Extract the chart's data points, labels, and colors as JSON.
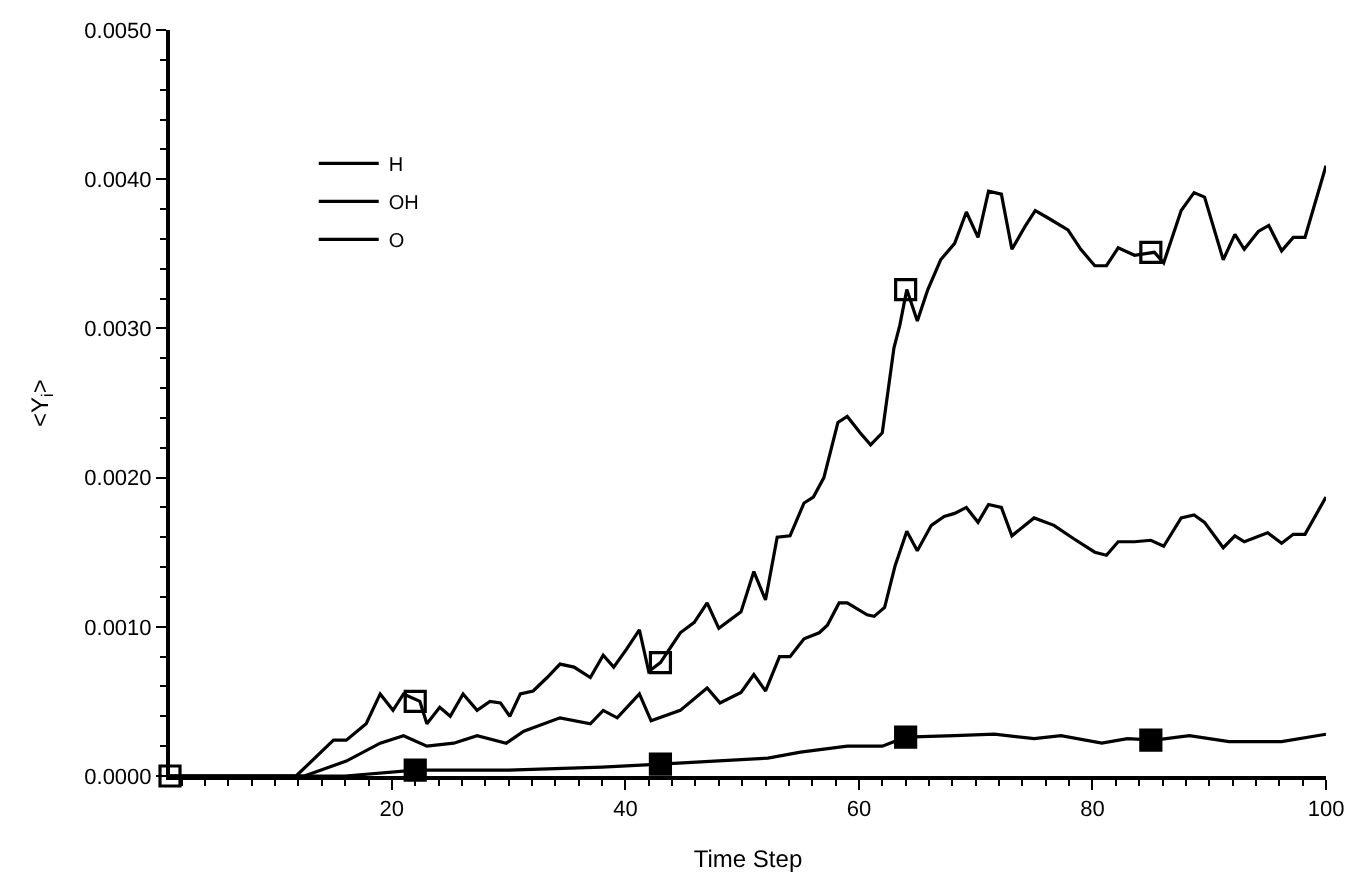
{
  "chart_data": {
    "type": "line",
    "xlabel": "Time Step",
    "ylabel": "<Y$_{i}$>",
    "xlim": [
      1,
      100
    ],
    "xticks": [
      20,
      40,
      60,
      80,
      100
    ],
    "ylim": [
      0,
      0.005
    ],
    "yticks": [
      {
        "value": 0,
        "label": "0.0000"
      },
      {
        "value": 0.001,
        "label": "0.0010"
      },
      {
        "value": 0.002,
        "label": "0.0020"
      },
      {
        "value": 0.003,
        "label": "0.0030"
      },
      {
        "value": 0.004,
        "label": "0.0040"
      },
      {
        "value": 0.005,
        "label": "0.0050"
      }
    ],
    "legend": "top left",
    "series": [
      {
        "name": "H",
        "color": "#000000",
        "x": [
          1,
          12,
          16,
          22,
          30,
          38,
          43,
          47.6,
          52.2,
          55,
          59,
          62,
          64,
          68.2,
          71.6,
          75,
          77.3,
          80.8,
          83,
          85.3,
          88.3,
          91.7,
          96.2,
          100
        ],
        "values": [
          0,
          0,
          0,
          4e-05,
          4e-05,
          6e-05,
          8e-05,
          0.0001,
          0.00012,
          0.00016,
          0.0002,
          0.0002,
          0.00026,
          0.00027,
          0.00028,
          0.00025,
          0.00027,
          0.00022,
          0.00025,
          0.00024,
          0.00027,
          0.00023,
          0.00023,
          0.00028
        ]
      },
      {
        "name": "OH",
        "color": "#000000",
        "x": [
          1,
          11.8,
          15,
          16.1,
          17.8,
          19,
          20.1,
          21,
          22.4,
          23,
          24.1,
          25,
          26.1,
          27.3,
          28.4,
          29.3,
          30.1,
          31,
          32.1,
          33.3,
          34.4,
          35.6,
          37,
          38.1,
          39,
          40.1,
          41.2,
          42,
          43,
          44.7,
          45.9,
          47,
          48,
          49.9,
          51,
          52,
          53,
          54.1,
          55.3,
          56.1,
          57,
          58.2,
          59,
          60.1,
          61,
          62,
          63,
          63.5,
          64.1,
          65,
          65.9,
          67,
          68.2,
          69.2,
          70.2,
          71.1,
          72.2,
          73.1,
          74.2,
          75.1,
          76.2,
          77.9,
          79,
          80.2,
          81.2,
          82.2,
          83.6,
          85.3,
          86.1,
          87.6,
          88.7,
          89.6,
          91.2,
          92.2,
          93,
          94.2,
          95.1,
          96.2,
          97.2,
          98.2,
          100
        ],
        "values": [
          0,
          0,
          0.00024,
          0.00024,
          0.00035,
          0.00055,
          0.00044,
          0.00055,
          0.0005,
          0.00035,
          0.00046,
          0.0004,
          0.00055,
          0.00044,
          0.0005,
          0.00049,
          0.0004,
          0.00055,
          0.00057,
          0.00066,
          0.00075,
          0.00073,
          0.00066,
          0.00081,
          0.00073,
          0.00085,
          0.00098,
          0.0007,
          0.00076,
          0.00096,
          0.00103,
          0.00116,
          0.00099,
          0.0011,
          0.00137,
          0.00118,
          0.0016,
          0.00161,
          0.00183,
          0.00187,
          0.002,
          0.00237,
          0.00241,
          0.0023,
          0.00222,
          0.0023,
          0.00287,
          0.00302,
          0.00326,
          0.00305,
          0.00326,
          0.00346,
          0.00357,
          0.00378,
          0.00361,
          0.00392,
          0.0039,
          0.00353,
          0.00368,
          0.00379,
          0.00374,
          0.00366,
          0.00353,
          0.00342,
          0.00342,
          0.00354,
          0.00349,
          0.00351,
          0.00344,
          0.00379,
          0.00391,
          0.00388,
          0.00346,
          0.00363,
          0.00353,
          0.00365,
          0.00369,
          0.00352,
          0.00361,
          0.00361,
          0.00409
        ]
      },
      {
        "name": "O",
        "color": "#000000",
        "x": [
          1,
          12.5,
          16.1,
          19,
          21,
          23,
          25.3,
          27.3,
          29.8,
          31.3,
          34.4,
          37,
          38.1,
          39.3,
          41.2,
          42.2,
          44.7,
          47,
          48.1,
          49.9,
          51,
          52,
          53.2,
          54.1,
          55.3,
          56.6,
          57.3,
          58.3,
          59,
          60.7,
          61.3,
          62.2,
          63.1,
          64.1,
          65,
          66.2,
          67.3,
          68.2,
          69.2,
          70.2,
          71.1,
          72.2,
          73.1,
          75,
          76.7,
          78.4,
          80.2,
          81.2,
          82.2,
          83.6,
          85,
          86.1,
          87.6,
          88.7,
          89.6,
          91.2,
          92.2,
          93,
          95,
          96.2,
          97.2,
          98.2,
          100
        ],
        "values": [
          0,
          0,
          0.0001,
          0.00022,
          0.00027,
          0.0002,
          0.00022,
          0.00027,
          0.00022,
          0.0003,
          0.00039,
          0.00035,
          0.00044,
          0.00039,
          0.00055,
          0.00037,
          0.00044,
          0.00059,
          0.00049,
          0.00056,
          0.00068,
          0.00057,
          0.0008,
          0.0008,
          0.00092,
          0.00096,
          0.00101,
          0.00116,
          0.00116,
          0.00108,
          0.00107,
          0.00113,
          0.00141,
          0.00164,
          0.00151,
          0.00168,
          0.00174,
          0.00176,
          0.0018,
          0.0017,
          0.00182,
          0.0018,
          0.00161,
          0.00173,
          0.00168,
          0.00159,
          0.0015,
          0.00148,
          0.00157,
          0.00157,
          0.00158,
          0.00154,
          0.00173,
          0.00175,
          0.0017,
          0.00153,
          0.00161,
          0.00157,
          0.00163,
          0.00156,
          0.00162,
          0.00162,
          0.00187
        ]
      },
      {
        "type": "scatter",
        "marker": "square",
        "color": "#000000",
        "x": [
          22,
          43,
          64,
          85
        ],
        "values": [
          4e-05,
          8e-05,
          0.00026,
          0.00024
        ]
      },
      {
        "type": "scatter",
        "marker": "square-open",
        "color": "#000000",
        "x": [
          1,
          22,
          43,
          64,
          85
        ],
        "values": [
          0,
          0.0005,
          0.00076,
          0.00326,
          0.00351
        ]
      }
    ]
  }
}
